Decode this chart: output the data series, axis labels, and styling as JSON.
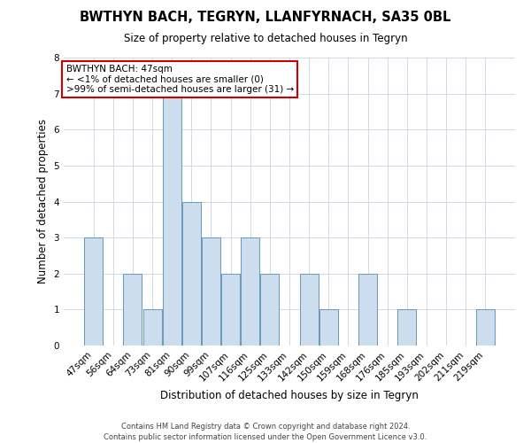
{
  "title": "BWTHYN BACH, TEGRYN, LLANFYRNACH, SA35 0BL",
  "subtitle": "Size of property relative to detached houses in Tegryn",
  "xlabel": "Distribution of detached houses by size in Tegryn",
  "ylabel": "Number of detached properties",
  "categories": [
    "47sqm",
    "56sqm",
    "64sqm",
    "73sqm",
    "81sqm",
    "90sqm",
    "99sqm",
    "107sqm",
    "116sqm",
    "125sqm",
    "133sqm",
    "142sqm",
    "150sqm",
    "159sqm",
    "168sqm",
    "176sqm",
    "185sqm",
    "193sqm",
    "202sqm",
    "211sqm",
    "219sqm"
  ],
  "values": [
    3,
    0,
    2,
    1,
    7,
    4,
    3,
    2,
    3,
    2,
    0,
    2,
    1,
    0,
    2,
    0,
    1,
    0,
    0,
    0,
    1
  ],
  "bar_color": "#ccdded",
  "bar_edge_color": "#6699bb",
  "background_color": "#ffffff",
  "grid_color": "#c8d4e0",
  "annotation_line1": "BWTHYN BACH: 47sqm",
  "annotation_line2": "← <1% of detached houses are smaller (0)",
  "annotation_line3": ">99% of semi-detached houses are larger (31) →",
  "annotation_box_color": "#ffffff",
  "annotation_box_edge_color": "#cc0000",
  "footer": "Contains HM Land Registry data © Crown copyright and database right 2024.\nContains public sector information licensed under the Open Government Licence v3.0.",
  "ylim": [
    0,
    8
  ],
  "yticks": [
    0,
    1,
    2,
    3,
    4,
    5,
    6,
    7,
    8
  ]
}
